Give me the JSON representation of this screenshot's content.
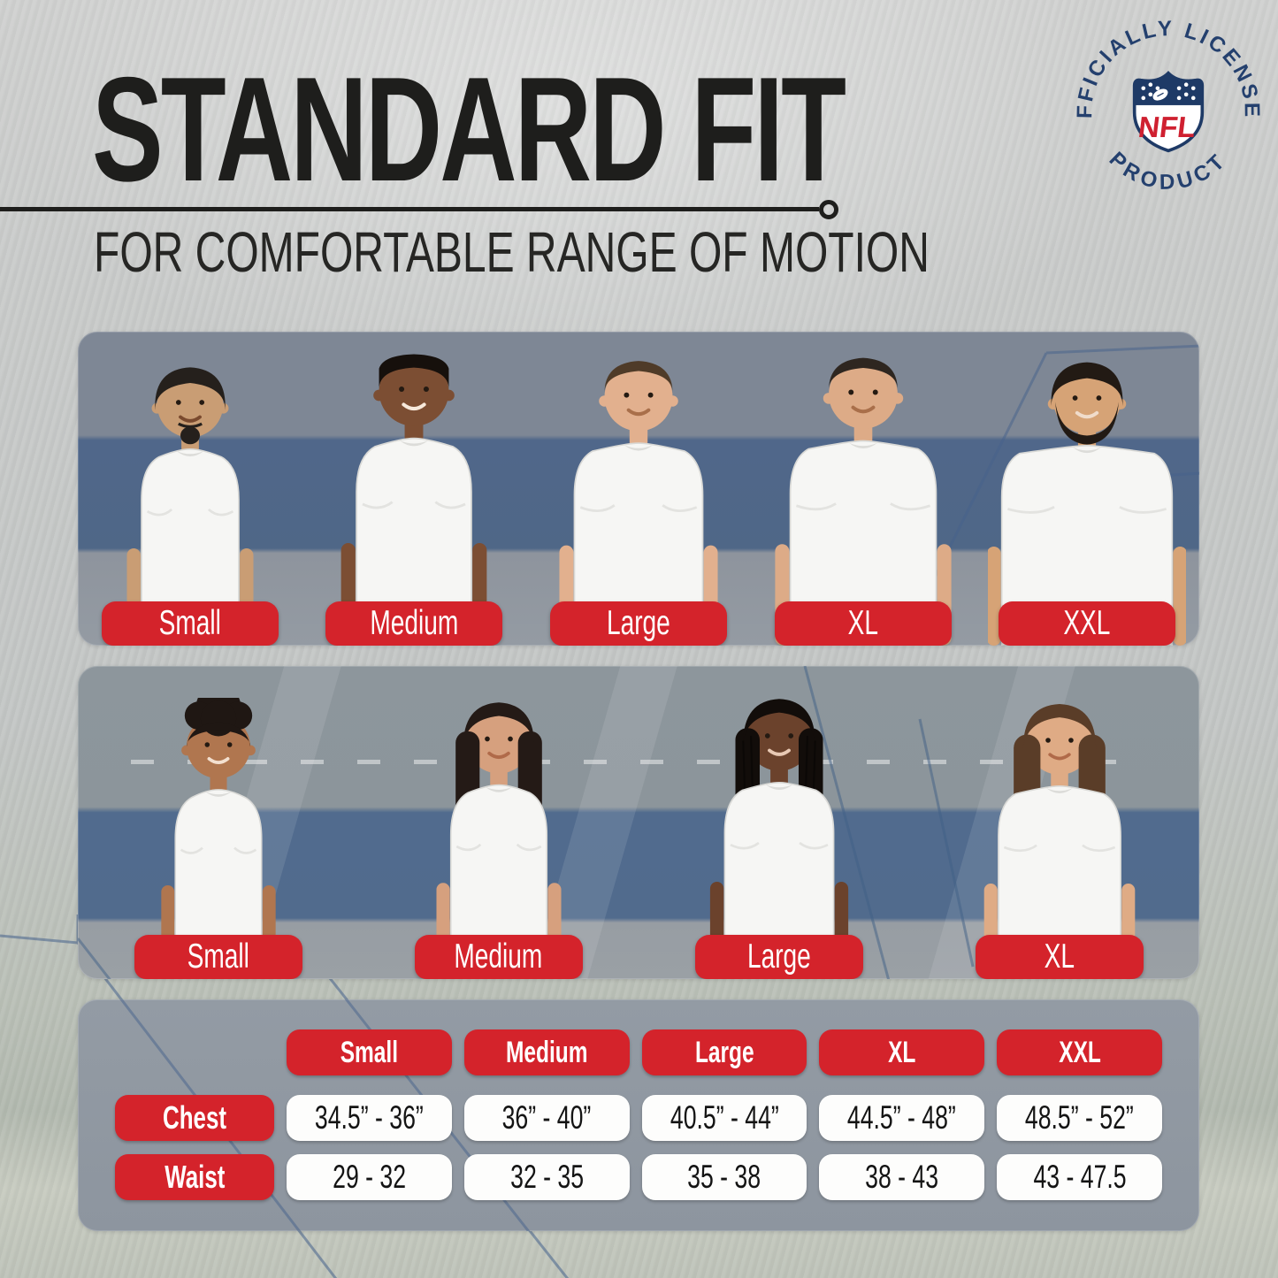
{
  "title": "STANDARD FIT",
  "subtitle": "FOR COMFORTABLE RANGE OF MOTION",
  "license_badge": {
    "arc_top": "OFFICIALLY LICENSED",
    "arc_bottom": "PRODUCT",
    "shield": "NFL"
  },
  "colors": {
    "accent_red": "#d4232b",
    "navy": "#1e3a66",
    "ink": "#1d1d1b",
    "field_blue": "#4f6787"
  },
  "men_row": {
    "sizes": [
      "Small",
      "Medium",
      "Large",
      "XL",
      "XXL"
    ]
  },
  "women_row": {
    "sizes": [
      "Small",
      "Medium",
      "Large",
      "XL"
    ]
  },
  "chart_data": {
    "type": "table",
    "title": "STANDARD FIT",
    "columns": [
      "Small",
      "Medium",
      "Large",
      "XL",
      "XXL"
    ],
    "rows": [
      {
        "label": "Chest",
        "values": [
          "34.5” - 36”",
          "36” - 40”",
          "40.5” - 44”",
          "44.5” - 48”",
          "48.5” - 52”"
        ]
      },
      {
        "label": "Waist",
        "values": [
          "29 - 32",
          "32 - 35",
          "35 - 38",
          "38 - 43",
          "43 - 47.5"
        ]
      }
    ]
  }
}
